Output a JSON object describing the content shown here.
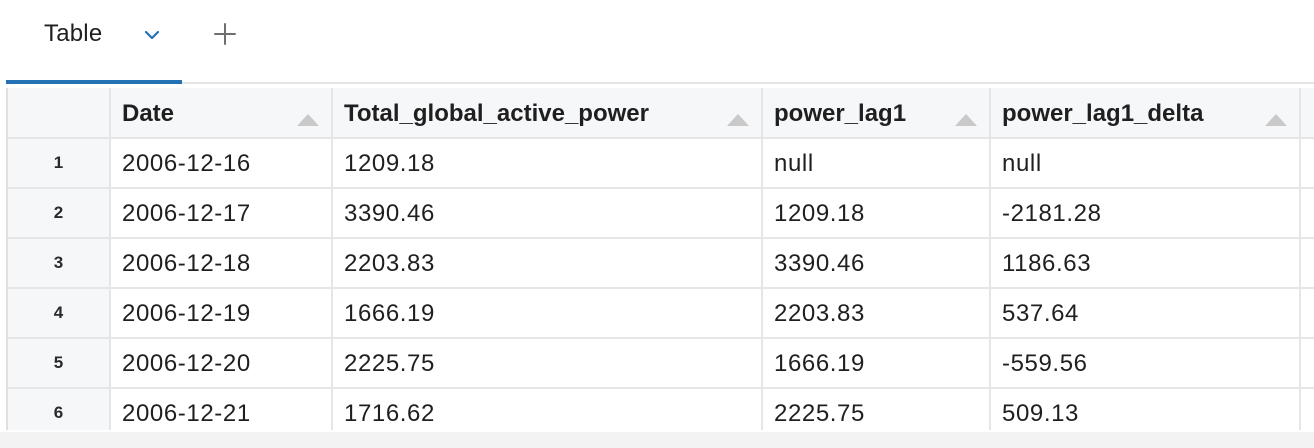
{
  "tabs": {
    "active_label": "Table",
    "chevron_icon": "chevron-down-icon",
    "add_icon": "plus-icon",
    "accent_color": "#2272b4"
  },
  "table": {
    "columns": [
      "Date",
      "Total_global_active_power",
      "power_lag1",
      "power_lag1_delta"
    ],
    "sort_icon": "sort-triangle-icon",
    "rows": [
      {
        "num": "1",
        "cells": [
          "2006-12-16",
          "1209.18",
          "null",
          "null"
        ]
      },
      {
        "num": "2",
        "cells": [
          "2006-12-17",
          "3390.46",
          "1209.18",
          "-2181.28"
        ]
      },
      {
        "num": "3",
        "cells": [
          "2006-12-18",
          "2203.83",
          "3390.46",
          "1186.63"
        ]
      },
      {
        "num": "4",
        "cells": [
          "2006-12-19",
          "1666.19",
          "2203.83",
          "537.64"
        ]
      },
      {
        "num": "5",
        "cells": [
          "2006-12-20",
          "2225.75",
          "1666.19",
          "-559.56"
        ]
      },
      {
        "num": "6",
        "cells": [
          "2006-12-21",
          "1716.62",
          "2225.75",
          "509.13"
        ]
      }
    ]
  }
}
